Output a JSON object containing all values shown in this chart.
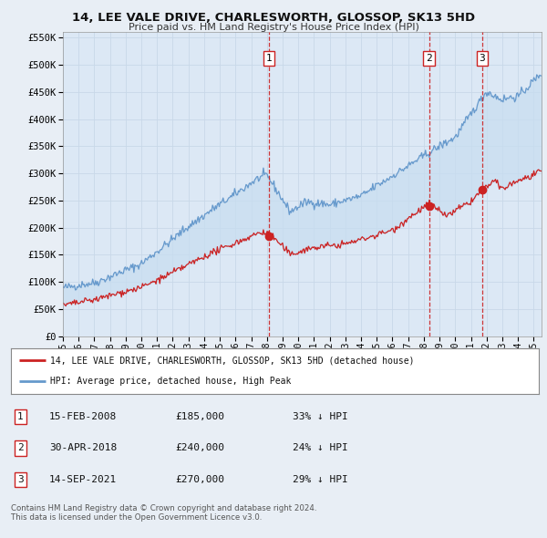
{
  "title": "14, LEE VALE DRIVE, CHARLESWORTH, GLOSSOP, SK13 5HD",
  "subtitle": "Price paid vs. HM Land Registry's House Price Index (HPI)",
  "ylim": [
    0,
    560000
  ],
  "yticks": [
    0,
    50000,
    100000,
    150000,
    200000,
    250000,
    300000,
    350000,
    400000,
    450000,
    500000,
    550000
  ],
  "xlim_start": 1995.0,
  "xlim_end": 2025.5,
  "bg_color": "#e8eef5",
  "plot_bg": "#dce8f5",
  "grid_color": "#c8d8e8",
  "hpi_color": "#6699cc",
  "price_color": "#cc2222",
  "fill_color": "#c8ddf0",
  "vline_color": "#cc2222",
  "transaction_dates": [
    2008.12,
    2018.33,
    2021.71
  ],
  "transaction_labels": [
    "1",
    "2",
    "3"
  ],
  "transaction_prices": [
    185000,
    240000,
    270000
  ],
  "transaction_info": [
    {
      "label": "1",
      "date": "15-FEB-2008",
      "price": "£185,000",
      "hpi": "33% ↓ HPI"
    },
    {
      "label": "2",
      "date": "30-APR-2018",
      "price": "£240,000",
      "hpi": "24% ↓ HPI"
    },
    {
      "label": "3",
      "date": "14-SEP-2021",
      "price": "£270,000",
      "hpi": "29% ↓ HPI"
    }
  ],
  "legend_line1": "14, LEE VALE DRIVE, CHARLESWORTH, GLOSSOP, SK13 5HD (detached house)",
  "legend_line2": "HPI: Average price, detached house, High Peak",
  "footer1": "Contains HM Land Registry data © Crown copyright and database right 2024.",
  "footer2": "This data is licensed under the Open Government Licence v3.0."
}
